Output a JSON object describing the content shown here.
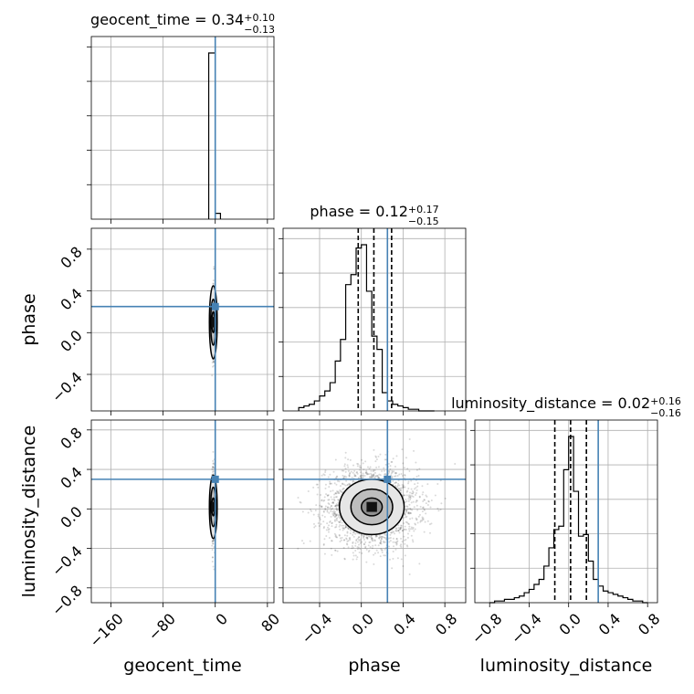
{
  "chart_data": {
    "type": "corner",
    "parameters": [
      "geocent_time",
      "phase",
      "luminosity_distance"
    ],
    "truth_color": "#4682b4",
    "truth": [
      0.0,
      0.25,
      0.3
    ],
    "titles": [
      {
        "name": "geocent_time",
        "value": "0.34",
        "plus": "+0.10",
        "minus": "−0.13"
      },
      {
        "name": "phase",
        "value": "0.12",
        "plus": "+0.17",
        "minus": "−0.15"
      },
      {
        "name": "luminosity_distance",
        "value": "0.02",
        "plus": "+0.16",
        "minus": "−0.16"
      }
    ],
    "ranges": [
      [
        -190,
        90
      ],
      [
        -0.75,
        1.0
      ],
      [
        -0.95,
        0.9
      ]
    ],
    "ticks": [
      {
        "values": [
          -160,
          -80,
          0,
          80
        ],
        "labels": [
          "−160",
          "−80",
          "0",
          "80"
        ]
      },
      {
        "values": [
          -0.4,
          0.0,
          0.4,
          0.8
        ],
        "labels": [
          "−0.4",
          "0.0",
          "0.4",
          "0.8"
        ]
      },
      {
        "values": [
          -0.8,
          -0.4,
          0.0,
          0.4,
          0.8
        ],
        "labels": [
          "−0.8",
          "−0.4",
          "0.0",
          "0.4",
          "0.8"
        ]
      }
    ],
    "quantiles": [
      [],
      [
        -0.03,
        0.12,
        0.29
      ],
      [
        -0.14,
        0.02,
        0.18
      ]
    ],
    "hist1d": [
      {
        "edges": [
          -10,
          0,
          8
        ],
        "counts": [
          1.0,
          0.035
        ]
      },
      {
        "edges": [
          -0.6,
          -0.55,
          -0.5,
          -0.45,
          -0.4,
          -0.35,
          -0.3,
          -0.25,
          -0.2,
          -0.15,
          -0.1,
          -0.05,
          0.0,
          0.05,
          0.1,
          0.15,
          0.2,
          0.25,
          0.3,
          0.35,
          0.4,
          0.45,
          0.5,
          0.55,
          0.6,
          0.65,
          0.7
        ],
        "counts": [
          0.02,
          0.03,
          0.04,
          0.06,
          0.09,
          0.12,
          0.17,
          0.3,
          0.43,
          0.76,
          0.82,
          0.98,
          1.0,
          0.72,
          0.45,
          0.37,
          0.11,
          0.06,
          0.04,
          0.03,
          0.02,
          0.01,
          0.01,
          0.0,
          0.0,
          0.0
        ]
      },
      {
        "edges": [
          -0.8,
          -0.75,
          -0.7,
          -0.65,
          -0.6,
          -0.55,
          -0.5,
          -0.45,
          -0.4,
          -0.35,
          -0.3,
          -0.25,
          -0.2,
          -0.15,
          -0.1,
          -0.05,
          0.0,
          0.05,
          0.1,
          0.15,
          0.2,
          0.25,
          0.3,
          0.35,
          0.4,
          0.45,
          0.5,
          0.55,
          0.6,
          0.65,
          0.7,
          0.75,
          0.8
        ],
        "counts": [
          0.0,
          0.01,
          0.01,
          0.02,
          0.02,
          0.03,
          0.04,
          0.06,
          0.08,
          0.11,
          0.14,
          0.22,
          0.33,
          0.44,
          0.46,
          0.8,
          1.0,
          0.67,
          0.4,
          0.41,
          0.25,
          0.14,
          0.1,
          0.07,
          0.06,
          0.05,
          0.04,
          0.03,
          0.02,
          0.01,
          0.01,
          0.0
        ]
      }
    ],
    "contours2d": [
      {
        "row": 1,
        "col": 0,
        "center": [
          -3,
          0.1
        ],
        "radii": [
          [
            6,
            0.35
          ],
          [
            4,
            0.22
          ],
          [
            2.2,
            0.1
          ]
        ],
        "core": [
          3,
          0.05
        ]
      },
      {
        "row": 2,
        "col": 0,
        "center": [
          -3,
          0.02
        ],
        "radii": [
          [
            6,
            0.32
          ],
          [
            4,
            0.2
          ],
          [
            2.2,
            0.09
          ]
        ],
        "core": [
          3,
          0.05
        ]
      },
      {
        "row": 2,
        "col": 1,
        "center": [
          0.1,
          0.02
        ],
        "radii": [
          [
            0.31,
            0.28
          ],
          [
            0.2,
            0.18
          ],
          [
            0.1,
            0.09
          ]
        ],
        "core": [
          0.05,
          0.05
        ]
      }
    ]
  }
}
